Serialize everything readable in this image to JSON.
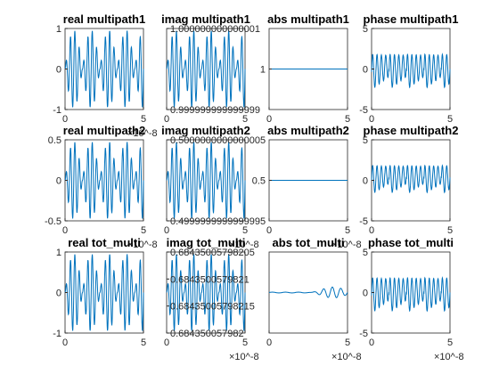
{
  "figure": {
    "background": "#ffffff",
    "line_color": "#0072bd",
    "axis_color": "#262626"
  },
  "chart_data": [
    {
      "type": "line",
      "title": "real multipath1",
      "xlim": [
        0,
        5e-08
      ],
      "ylim": [
        -1,
        1
      ],
      "x_ticks": [
        "0",
        "5"
      ],
      "y_ticks": [
        "-1",
        "0",
        "1"
      ],
      "x_exponent": "×10^-8",
      "series": [
        {
          "kind": "beat",
          "amplitude": 1,
          "offset": 0,
          "description_only": false
        }
      ]
    },
    {
      "type": "line",
      "title": "imag multipath1",
      "xlim": [
        0,
        5e-08
      ],
      "ylim": [
        0.999999999999999,
        1.000000000000001
      ],
      "x_ticks": [
        "0",
        "5"
      ],
      "y_ticks": [
        "0.999999999999999",
        "1.000000000000001"
      ],
      "x_exponent": "",
      "series": [
        {
          "kind": "beat",
          "amplitude": 1,
          "offset": 0
        }
      ]
    },
    {
      "type": "line",
      "title": "abs multipath1",
      "xlim": [
        0,
        5e-08
      ],
      "ylim": [
        0.999999999999999,
        1.000000000000001
      ],
      "x_ticks": [
        "0",
        "5"
      ],
      "y_ticks": [
        "1"
      ],
      "x_exponent": "",
      "series": [
        {
          "kind": "constant",
          "value": 1
        }
      ]
    },
    {
      "type": "line",
      "title": "phase multipath1",
      "xlim": [
        0,
        5e-08
      ],
      "ylim": [
        -5,
        5
      ],
      "x_ticks": [
        "0",
        "5"
      ],
      "y_ticks": [
        "-5",
        "0",
        "5"
      ],
      "x_exponent": "",
      "series": [
        {
          "kind": "sawtooth",
          "range": [
            -3.14,
            3.14
          ]
        }
      ]
    },
    {
      "type": "line",
      "title": "real multipath2",
      "xlim": [
        0,
        5e-08
      ],
      "ylim": [
        -0.5,
        0.5
      ],
      "x_ticks": [
        "0",
        "5"
      ],
      "y_ticks": [
        "-0.5",
        "0",
        "0.5"
      ],
      "x_exponent": "×10^-8",
      "series": [
        {
          "kind": "beat",
          "amplitude": 0.5,
          "offset": 0
        }
      ]
    },
    {
      "type": "line",
      "title": "imag multipath2",
      "xlim": [
        0,
        5e-08
      ],
      "ylim": [
        0.4999999999999995,
        0.5000000000000006
      ],
      "x_ticks": [
        "0",
        "5"
      ],
      "y_ticks": [
        "0.4999999999999995",
        "0.5000000000000005"
      ],
      "x_exponent": "×10^-8",
      "series": [
        {
          "kind": "beat",
          "amplitude": 1,
          "offset": 0
        }
      ]
    },
    {
      "type": "line",
      "title": "abs multipath2",
      "xlim": [
        0,
        5e-08
      ],
      "ylim": [
        0.4999999999999995,
        0.5000000000000006
      ],
      "x_ticks": [
        "0",
        "5"
      ],
      "y_ticks": [
        "0.5"
      ],
      "x_exponent": "×10^-8",
      "series": [
        {
          "kind": "constant",
          "value": 0.5
        }
      ]
    },
    {
      "type": "line",
      "title": "phase multipath2",
      "xlim": [
        0,
        5e-08
      ],
      "ylim": [
        -5,
        5
      ],
      "x_ticks": [
        "0",
        "5"
      ],
      "y_ticks": [
        "-5",
        "0",
        "5"
      ],
      "x_exponent": "",
      "series": [
        {
          "kind": "sawtooth",
          "range": [
            -2.2,
            2.9
          ]
        }
      ]
    },
    {
      "type": "line",
      "title": "real tot_multi",
      "xlim": [
        0,
        5e-08
      ],
      "ylim": [
        -1,
        1
      ],
      "x_ticks": [
        "0",
        "5"
      ],
      "y_ticks": [
        "-1",
        "0",
        "1"
      ],
      "x_exponent": "",
      "series": [
        {
          "kind": "beat",
          "amplitude": 0.7,
          "offset": 0
        }
      ]
    },
    {
      "type": "line",
      "title": "imag tot_multi",
      "xlim": [
        0,
        5e-08
      ],
      "ylim": [
        0.684350057982,
        0.6843500579822
      ],
      "x_ticks": [
        "0",
        "5"
      ],
      "y_ticks": [
        "0.684350057982",
        "0.68435005798215",
        "0.6843500579821",
        "0.68435005798205"
      ],
      "x_exponent": "×10^-8",
      "series": [
        {
          "kind": "beat",
          "amplitude": 0.7,
          "offset": 0
        }
      ]
    },
    {
      "type": "line",
      "title": "abs tot_multi",
      "xlim": [
        0,
        5e-08
      ],
      "ylim": [
        0.6843500579819,
        0.6843500579823
      ],
      "x_ticks": [
        "0",
        "5"
      ],
      "y_ticks": [],
      "x_exponent": "×10^-8",
      "series": [
        {
          "kind": "near_constant"
        }
      ]
    },
    {
      "type": "line",
      "title": "phase tot_multi",
      "xlim": [
        0,
        5e-08
      ],
      "ylim": [
        -5,
        5
      ],
      "x_ticks": [
        "0",
        "5"
      ],
      "y_ticks": [
        "-5",
        "0",
        "5"
      ],
      "x_exponent": "×10^-8",
      "series": [
        {
          "kind": "sawtooth",
          "range": [
            -3.14,
            3.14
          ]
        }
      ]
    }
  ]
}
